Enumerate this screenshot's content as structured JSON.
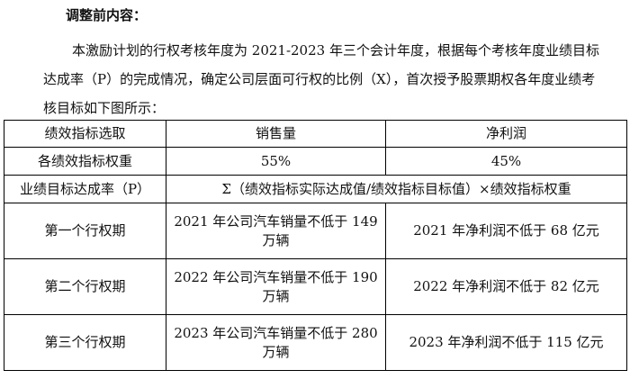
{
  "heading": "调整前内容：",
  "paragraph": "本激励计划的行权考核年度为 2021-2023 年三个会计年度，根据每个考核年度业绩目标达成率（P）的完成情况，确定公司层面可行权的比例（X），首次授予股票期权各年度业绩考核目标如下图所示：",
  "table": {
    "header": [
      "绩效指标选取",
      "销售量",
      "净利润"
    ],
    "weights": [
      "各绩效指标权重",
      "55%",
      "45%"
    ],
    "rate": [
      "业绩目标达成率（P）",
      "Σ（绩效指标实际达成值/绩效指标目标值）×绩效指标权重"
    ],
    "periods": [
      [
        "第一个行权期",
        "2021 年公司汽车销量不低于 149 万辆",
        "2021 年净利润不低于 68 亿元"
      ],
      [
        "第二个行权期",
        "2022 年公司汽车销量不低于 190 万辆",
        "2022 年净利润不低于 82 亿元"
      ],
      [
        "第三个行权期",
        "2023 年公司汽车销量不低于 280 万辆",
        "2023 年净利润不低于 115 亿元"
      ]
    ]
  }
}
